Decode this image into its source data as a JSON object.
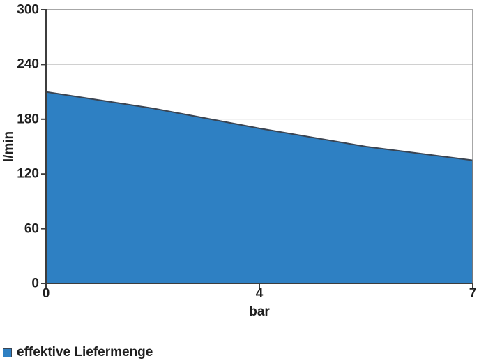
{
  "colors": {
    "area_fill": "#2E80C3",
    "area_border": "#3A4452",
    "gridline": "#C9C9C9",
    "plot_border": "#8A8A8A",
    "axis": "#3D3D3D",
    "text": "#1F1F1F",
    "background": "#FFFFFF"
  },
  "chart_data": {
    "type": "area",
    "title": "",
    "xlabel": "bar",
    "ylabel": "l/min",
    "x": [
      0,
      2,
      4,
      6,
      7
    ],
    "series": [
      {
        "name": "effektive Liefermenge",
        "values": [
          210,
          192,
          170,
          150,
          135
        ]
      }
    ],
    "ylim": [
      0,
      300
    ],
    "yticks": [
      0,
      60,
      120,
      180,
      240,
      300
    ],
    "xticks": [
      {
        "label": "0",
        "index": 0
      },
      {
        "label": "4",
        "index": 2
      },
      {
        "label": "7",
        "index": 4
      }
    ],
    "grid": true,
    "grid_axis": "y",
    "legend_position": "bottom-left",
    "x_axis_note": "category axis, points equally spaced; only 0, 4, 7 labeled"
  }
}
